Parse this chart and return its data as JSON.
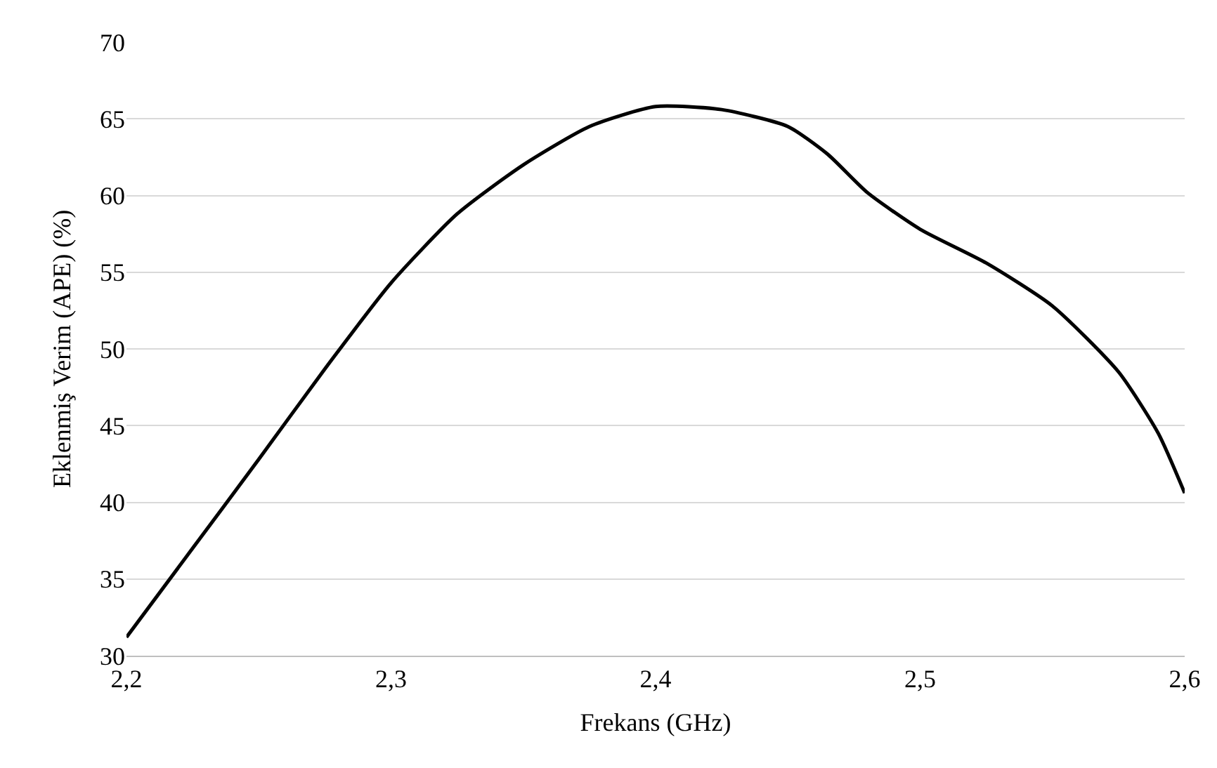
{
  "chart_data": {
    "type": "line",
    "xlabel": "Frekans (GHz)",
    "ylabel": "Eklenmiş Verim (APE) (%)",
    "x": [
      2.2,
      2.225,
      2.25,
      2.275,
      2.3,
      2.325,
      2.35,
      2.375,
      2.4,
      2.425,
      2.45,
      2.465,
      2.48,
      2.5,
      2.525,
      2.55,
      2.575,
      2.59,
      2.6
    ],
    "series": [
      {
        "color": "#000000",
        "values": [
          31.2,
          37.0,
          42.8,
          48.7,
          54.3,
          58.8,
          62.0,
          64.5,
          65.8,
          65.6,
          64.5,
          62.7,
          60.2,
          57.8,
          55.6,
          52.8,
          48.5,
          44.5,
          40.6
        ]
      }
    ],
    "xlim": [
      2.2,
      2.6
    ],
    "ylim": [
      30,
      70
    ],
    "xticks": [
      {
        "value": 2.2,
        "label": "2,2"
      },
      {
        "value": 2.3,
        "label": "2,3"
      },
      {
        "value": 2.4,
        "label": "2,4"
      },
      {
        "value": 2.5,
        "label": "2,5"
      },
      {
        "value": 2.6,
        "label": "2,6"
      }
    ],
    "yticks": [
      30,
      35,
      40,
      45,
      50,
      55,
      60,
      65,
      70
    ],
    "grid": "y",
    "marker": "none",
    "line_style": "solid"
  }
}
